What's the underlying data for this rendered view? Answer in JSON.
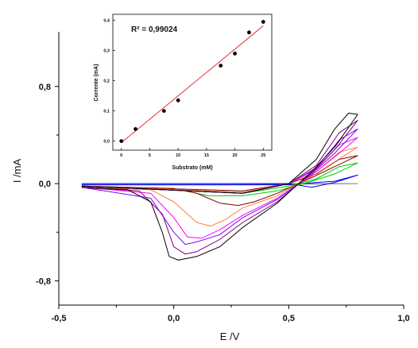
{
  "chart_data": [
    {
      "type": "line",
      "xlabel": "E /V",
      "ylabel": "I /mA",
      "xlim": [
        -0.5,
        1.0
      ],
      "ylim": [
        -1.0,
        1.25
      ],
      "xticks": [
        -0.5,
        0.0,
        0.5,
        1.0
      ],
      "xtick_labels": [
        "-0,5",
        "0,0",
        "0,5",
        "1,0"
      ],
      "yticks": [
        -0.8,
        0.0,
        0.8
      ],
      "ytick_labels": [
        "-0,8",
        "0,0",
        "0,8"
      ],
      "grid": false,
      "series": [
        {
          "color": "#808080",
          "forward": [
            [
              -0.4,
              -0.01
            ],
            [
              0.2,
              -0.01
            ],
            [
              0.5,
              -0.005
            ],
            [
              0.8,
              0.0
            ]
          ],
          "reverse": [
            [
              0.8,
              0.0
            ],
            [
              -0.4,
              0.0
            ]
          ]
        },
        {
          "color": "#0000ff",
          "forward": [
            [
              -0.4,
              -0.01
            ],
            [
              0.3,
              -0.01
            ],
            [
              0.5,
              -0.01
            ],
            [
              0.62,
              0.01
            ],
            [
              0.7,
              0.02
            ],
            [
              0.8,
              0.07
            ]
          ],
          "reverse": [
            [
              0.8,
              0.07
            ],
            [
              0.7,
              0.01
            ],
            [
              0.6,
              -0.03
            ],
            [
              0.5,
              0.0
            ],
            [
              0.3,
              0.0
            ],
            [
              -0.4,
              0.0
            ]
          ]
        },
        {
          "color": "#00cc00",
          "forward": [
            [
              -0.4,
              -0.02
            ],
            [
              0.3,
              -0.08
            ],
            [
              0.5,
              -0.02
            ],
            [
              0.62,
              0.04
            ],
            [
              0.72,
              0.14
            ],
            [
              0.8,
              0.17
            ]
          ],
          "reverse": [
            [
              0.8,
              0.17
            ],
            [
              0.7,
              0.08
            ],
            [
              0.6,
              0.02
            ],
            [
              0.45,
              -0.06
            ],
            [
              0.3,
              -0.1
            ],
            [
              0.15,
              -0.1
            ],
            [
              0.0,
              -0.04
            ],
            [
              -0.4,
              -0.02
            ]
          ]
        },
        {
          "color": "#800000",
          "forward": [
            [
              -0.4,
              -0.02
            ],
            [
              0.3,
              -0.06
            ],
            [
              0.5,
              0.0
            ],
            [
              0.62,
              0.08
            ],
            [
              0.72,
              0.2
            ],
            [
              0.8,
              0.23
            ]
          ],
          "reverse": [
            [
              0.8,
              0.23
            ],
            [
              0.7,
              0.14
            ],
            [
              0.6,
              0.05
            ],
            [
              0.45,
              -0.08
            ],
            [
              0.35,
              -0.15
            ],
            [
              0.28,
              -0.18
            ],
            [
              0.2,
              -0.16
            ],
            [
              0.1,
              -0.08
            ],
            [
              0.0,
              -0.04
            ],
            [
              -0.4,
              -0.02
            ]
          ]
        },
        {
          "color": "#ff8040",
          "forward": [
            [
              -0.4,
              -0.02
            ],
            [
              0.3,
              -0.07
            ],
            [
              0.5,
              0.0
            ],
            [
              0.62,
              0.1
            ],
            [
              0.72,
              0.26
            ],
            [
              0.8,
              0.3
            ]
          ],
          "reverse": [
            [
              0.8,
              0.3
            ],
            [
              0.7,
              0.18
            ],
            [
              0.6,
              0.06
            ],
            [
              0.45,
              -0.1
            ],
            [
              0.3,
              -0.2
            ],
            [
              0.22,
              -0.3
            ],
            [
              0.16,
              -0.35
            ],
            [
              0.1,
              -0.32
            ],
            [
              0.0,
              -0.15
            ],
            [
              -0.1,
              -0.05
            ],
            [
              -0.4,
              -0.03
            ]
          ]
        },
        {
          "color": "#ff00ff",
          "forward": [
            [
              -0.4,
              -0.02
            ],
            [
              0.3,
              -0.08
            ],
            [
              0.5,
              0.0
            ],
            [
              0.62,
              0.12
            ],
            [
              0.72,
              0.32
            ],
            [
              0.8,
              0.38
            ]
          ],
          "reverse": [
            [
              0.8,
              0.38
            ],
            [
              0.7,
              0.22
            ],
            [
              0.6,
              0.07
            ],
            [
              0.45,
              -0.12
            ],
            [
              0.3,
              -0.26
            ],
            [
              0.2,
              -0.38
            ],
            [
              0.12,
              -0.45
            ],
            [
              0.06,
              -0.44
            ],
            [
              0.0,
              -0.28
            ],
            [
              -0.1,
              -0.08
            ],
            [
              -0.4,
              -0.03
            ]
          ]
        },
        {
          "color": "#8000ff",
          "forward": [
            [
              -0.4,
              -0.02
            ],
            [
              0.3,
              -0.08
            ],
            [
              0.5,
              0.0
            ],
            [
              0.62,
              0.13
            ],
            [
              0.72,
              0.36
            ],
            [
              0.8,
              0.45
            ]
          ],
          "reverse": [
            [
              0.8,
              0.45
            ],
            [
              0.7,
              0.25
            ],
            [
              0.6,
              0.08
            ],
            [
              0.45,
              -0.13
            ],
            [
              0.3,
              -0.28
            ],
            [
              0.2,
              -0.42
            ],
            [
              0.1,
              -0.48
            ],
            [
              0.05,
              -0.5
            ],
            [
              0.0,
              -0.4
            ],
            [
              -0.1,
              -0.12
            ],
            [
              -0.4,
              -0.03
            ]
          ]
        },
        {
          "color": "#800080",
          "forward": [
            [
              -0.4,
              -0.02
            ],
            [
              0.3,
              -0.08
            ],
            [
              0.5,
              0.0
            ],
            [
              0.62,
              0.15
            ],
            [
              0.72,
              0.42
            ],
            [
              0.8,
              0.52
            ]
          ],
          "reverse": [
            [
              0.8,
              0.52
            ],
            [
              0.7,
              0.28
            ],
            [
              0.6,
              0.09
            ],
            [
              0.45,
              -0.15
            ],
            [
              0.3,
              -0.32
            ],
            [
              0.2,
              -0.46
            ],
            [
              0.1,
              -0.56
            ],
            [
              0.05,
              -0.58
            ],
            [
              0.0,
              -0.52
            ],
            [
              -0.05,
              -0.25
            ],
            [
              -0.15,
              -0.06
            ],
            [
              -0.4,
              -0.03
            ]
          ]
        },
        {
          "color": "#000000",
          "forward": [
            [
              -0.4,
              -0.02
            ],
            [
              0.3,
              -0.08
            ],
            [
              0.5,
              0.0
            ],
            [
              0.62,
              0.2
            ],
            [
              0.7,
              0.45
            ],
            [
              0.76,
              0.58
            ],
            [
              0.8,
              0.57
            ]
          ],
          "reverse": [
            [
              0.8,
              0.57
            ],
            [
              0.7,
              0.3
            ],
            [
              0.6,
              0.1
            ],
            [
              0.45,
              -0.16
            ],
            [
              0.3,
              -0.36
            ],
            [
              0.2,
              -0.52
            ],
            [
              0.1,
              -0.6
            ],
            [
              0.02,
              -0.63
            ],
            [
              -0.02,
              -0.6
            ],
            [
              -0.05,
              -0.4
            ],
            [
              -0.1,
              -0.15
            ],
            [
              -0.2,
              -0.05
            ],
            [
              -0.4,
              -0.03
            ]
          ]
        }
      ]
    },
    {
      "type": "scatter",
      "xlabel": "Substrato (mM)",
      "ylabel": "Corrente (mA)",
      "xlim": [
        -1.5,
        26.5
      ],
      "ylim": [
        -0.03,
        0.42
      ],
      "xticks": [
        0,
        5,
        10,
        15,
        20,
        25
      ],
      "xtick_labels": [
        "0",
        "5",
        "10",
        "15",
        "20",
        "25"
      ],
      "yticks": [
        0.0,
        0.1,
        0.2,
        0.3,
        0.4
      ],
      "ytick_labels": [
        "0,0",
        "0,1",
        "0,2",
        "0,3",
        "0,4"
      ],
      "annotation": "R² = 0,99024",
      "points": [
        [
          0,
          0.0
        ],
        [
          2.5,
          0.04
        ],
        [
          7.5,
          0.1
        ],
        [
          10,
          0.135
        ],
        [
          17.5,
          0.25
        ],
        [
          20,
          0.29
        ],
        [
          22.5,
          0.36
        ],
        [
          25,
          0.395
        ]
      ],
      "fit_line": [
        [
          0,
          -0.005
        ],
        [
          25,
          0.382
        ]
      ],
      "fit_color": "#e53030"
    }
  ]
}
